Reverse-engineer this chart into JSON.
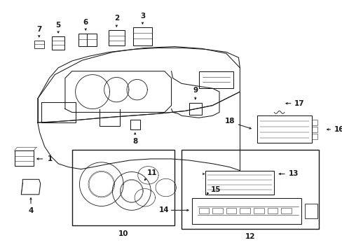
{
  "bg_color": "#ffffff",
  "line_color": "#1a1a1a",
  "fig_width": 4.89,
  "fig_height": 3.6,
  "dpi": 100,
  "label_fontsize": 7.5,
  "lw": 0.75
}
